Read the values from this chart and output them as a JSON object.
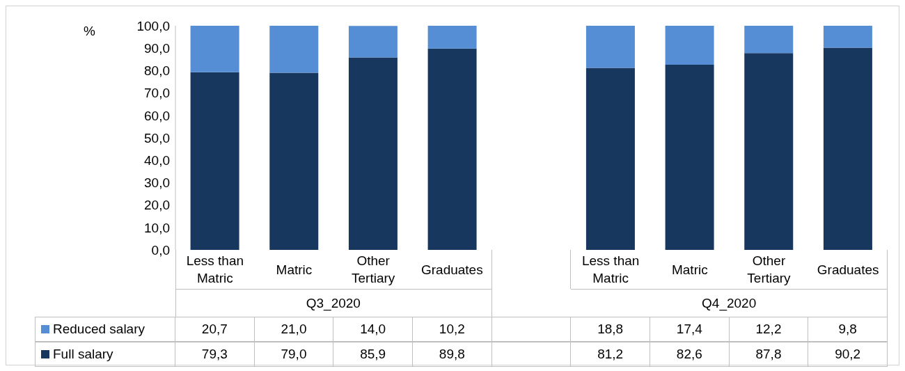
{
  "chart_data": {
    "type": "bar",
    "stacked": true,
    "ylabel": "%",
    "categories": [
      "Less than Matric",
      "Matric",
      "Other Tertiary",
      "Graduates",
      null,
      "Less than Matric",
      "Matric",
      "Other Tertiary",
      "Graduates"
    ],
    "annotations": [
      "Q3_2020",
      "Q4_2020"
    ],
    "series": [
      {
        "name": "Full salary",
        "color": "#17375e",
        "values": [
          79.3,
          79.0,
          85.9,
          89.8,
          null,
          81.2,
          82.6,
          87.8,
          90.2
        ],
        "value_labels": [
          "79,3",
          "79,0",
          "85,9",
          "89,8",
          null,
          "81,2",
          "82,6",
          "87,8",
          "90,2"
        ]
      },
      {
        "name": "Reduced salary",
        "color": "#558ed5",
        "values": [
          20.7,
          21.0,
          14.0,
          10.2,
          null,
          18.8,
          17.4,
          12.2,
          9.8
        ],
        "value_labels": [
          "20,7",
          "21,0",
          "14,0",
          "10,2",
          null,
          "18,8",
          "17,4",
          "12,2",
          "9,8"
        ]
      }
    ],
    "ylim": [
      0,
      100
    ],
    "yticks": [
      {
        "value": 0,
        "label": "0,0"
      },
      {
        "value": 10,
        "label": "10,0"
      },
      {
        "value": 20,
        "label": "20,0"
      },
      {
        "value": 30,
        "label": "30,0"
      },
      {
        "value": 40,
        "label": "40,0"
      },
      {
        "value": 50,
        "label": "50,0"
      },
      {
        "value": 60,
        "label": "60,0"
      },
      {
        "value": 70,
        "label": "70,0"
      },
      {
        "value": 80,
        "label": "80,0"
      },
      {
        "value": 90,
        "label": "90,0"
      },
      {
        "value": 100,
        "label": "100,0"
      }
    ],
    "legend": "bottom",
    "grid": false
  }
}
